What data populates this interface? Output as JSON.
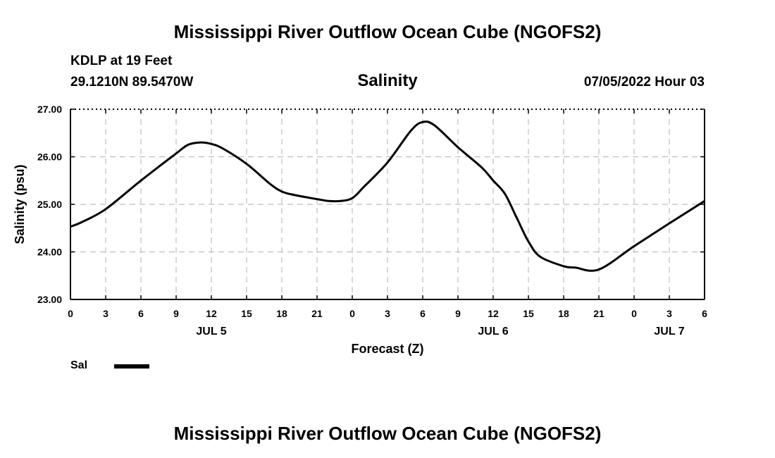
{
  "header": {
    "title": "Mississippi River Outflow Ocean Cube (NGOFS2)",
    "station": "KDLP at 19 Feet",
    "coords": "29.1210N  89.5470W",
    "variable": "Salinity",
    "datetime": "07/05/2022 Hour 03"
  },
  "footer": {
    "title": "Mississippi River Outflow Ocean Cube (NGOFS2)"
  },
  "legend": {
    "label": "Sal"
  },
  "chart_data": {
    "type": "line",
    "title": "Salinity",
    "xlabel": "Forecast (Z)",
    "ylabel": "Salinity (psu)",
    "xlim": [
      0,
      54
    ],
    "ylim": [
      23.0,
      27.0
    ],
    "yticks": [
      "23.00",
      "24.00",
      "25.00",
      "26.00",
      "27.00"
    ],
    "xtick_labels": [
      "0",
      "3",
      "6",
      "9",
      "12",
      "15",
      "18",
      "21",
      "0",
      "3",
      "6",
      "9",
      "12",
      "15",
      "18",
      "21",
      "0",
      "3",
      "6"
    ],
    "date_labels": [
      {
        "label": "JUL 5",
        "at": 12
      },
      {
        "label": "JUL 6",
        "at": 36
      },
      {
        "label": "JUL 7",
        "at": 51
      }
    ],
    "grid": true,
    "series": [
      {
        "name": "Sal",
        "color": "#000000",
        "x": [
          0,
          1,
          3,
          6,
          9,
          10,
          11,
          12,
          13,
          15,
          17,
          18,
          19,
          21,
          22,
          23,
          24,
          25,
          27,
          29,
          30,
          31,
          33,
          35,
          36,
          37,
          38,
          39,
          40,
          42,
          43,
          45,
          48,
          51,
          54
        ],
        "y": [
          24.53,
          24.63,
          24.9,
          25.5,
          26.07,
          26.25,
          26.3,
          26.27,
          26.17,
          25.85,
          25.43,
          25.27,
          25.2,
          25.11,
          25.07,
          25.07,
          25.13,
          25.37,
          25.88,
          26.55,
          26.73,
          26.66,
          26.2,
          25.78,
          25.5,
          25.22,
          24.72,
          24.22,
          23.9,
          23.7,
          23.67,
          23.63,
          24.12,
          24.6,
          25.07
        ]
      }
    ]
  }
}
